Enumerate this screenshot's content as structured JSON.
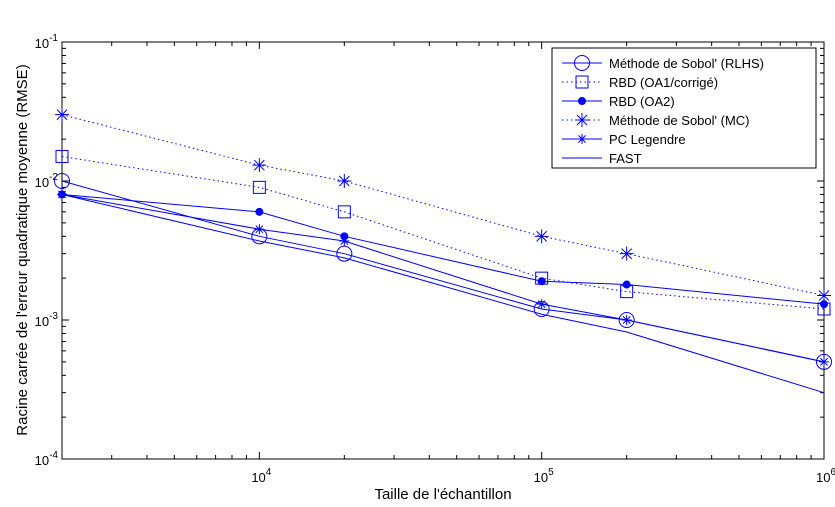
{
  "chart_data": {
    "type": "line",
    "xlabel": "Taille de l'échantillon",
    "ylabel": "Racine carrée de l'erreur quadratique moyenne (RMSE)",
    "xscale": "log",
    "yscale": "log",
    "xlim": [
      2000,
      1000000
    ],
    "ylim": [
      0.0001,
      0.1
    ],
    "x_ticks": [
      {
        "value": 10000,
        "base": "10",
        "exp": "4"
      },
      {
        "value": 100000,
        "base": "10",
        "exp": "5"
      },
      {
        "value": 1000000,
        "base": "10",
        "exp": "6"
      }
    ],
    "y_ticks": [
      {
        "value": 0.0001,
        "base": "10",
        "exp": "-4"
      },
      {
        "value": 0.001,
        "base": "10",
        "exp": "-3"
      },
      {
        "value": 0.01,
        "base": "10",
        "exp": "-2"
      },
      {
        "value": 0.1,
        "base": "10",
        "exp": "-1"
      }
    ],
    "grid": false,
    "legend_position": "top-right",
    "series": [
      {
        "name": "Méthode de Sobol' (RLHS)",
        "color": "#0000ff",
        "line": "solid",
        "marker": "circle",
        "x": [
          2000,
          10000,
          20000,
          100000,
          200000,
          1000000
        ],
        "y": [
          0.01,
          0.004,
          0.003,
          0.0012,
          0.001,
          0.0005
        ]
      },
      {
        "name": "RBD (OA1/corrigé)",
        "color": "#0000ff",
        "line": "dotted",
        "marker": "square",
        "x": [
          2000,
          10000,
          20000,
          100000,
          200000,
          1000000
        ],
        "y": [
          0.015,
          0.009,
          0.006,
          0.002,
          0.0016,
          0.0012
        ]
      },
      {
        "name": "RBD (OA2)",
        "color": "#0000ff",
        "line": "solid",
        "marker": "dot",
        "x": [
          2000,
          10000,
          20000,
          100000,
          200000,
          1000000
        ],
        "y": [
          0.008,
          0.006,
          0.004,
          0.0019,
          0.0018,
          0.0013
        ]
      },
      {
        "name": "Méthode de Sobol' (MC)",
        "color": "#0000ff",
        "line": "dotted",
        "marker": "asterisk-large",
        "x": [
          2000,
          10000,
          20000,
          100000,
          200000,
          1000000
        ],
        "y": [
          0.03,
          0.013,
          0.01,
          0.004,
          0.003,
          0.0015
        ]
      },
      {
        "name": "PC Legendre",
        "color": "#0000ff",
        "line": "solid",
        "marker": "asterisk",
        "x": [
          2000,
          10000,
          20000,
          100000,
          200000,
          1000000
        ],
        "y": [
          0.008,
          0.0045,
          0.0037,
          0.0013,
          0.001,
          0.0005
        ]
      },
      {
        "name": "FAST",
        "color": "#0000ff",
        "line": "solid",
        "marker": "none",
        "x": [
          2000,
          10000,
          20000,
          100000,
          200000,
          1000000
        ],
        "y": [
          0.008,
          0.0037,
          0.0028,
          0.0011,
          0.00082,
          0.0003
        ]
      }
    ]
  }
}
